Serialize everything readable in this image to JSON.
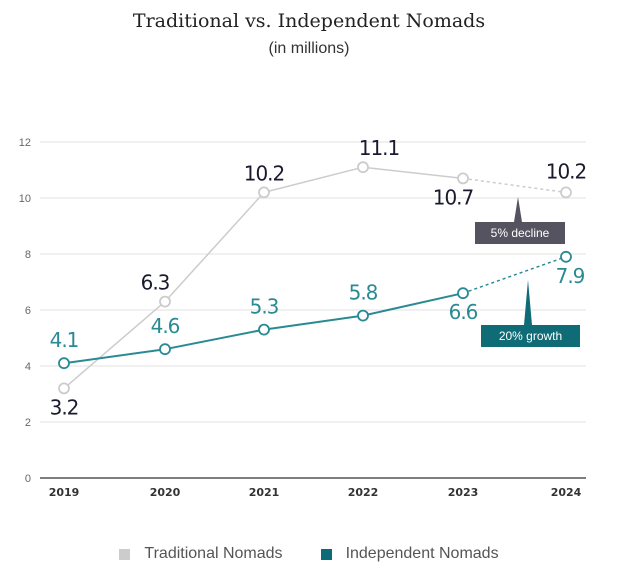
{
  "chart_data": {
    "type": "line",
    "title": "Traditional vs. Independent Nomads",
    "subtitle": "(in millions)",
    "xlabel": "",
    "ylabel": "",
    "categories": [
      "2019",
      "2020",
      "2021",
      "2022",
      "2023",
      "2024"
    ],
    "ylim": [
      0,
      12
    ],
    "yticks": [
      0,
      2,
      4,
      6,
      8,
      10,
      12
    ],
    "grid": true,
    "legend_position": "bottom",
    "series": [
      {
        "name": "Traditional Nomads",
        "color": "#cccccc",
        "label_color": "#1a1a2e",
        "values": [
          3.2,
          6.3,
          10.2,
          11.1,
          10.7,
          10.2
        ],
        "last_segment_dashed": true
      },
      {
        "name": "Independent Nomads",
        "color": "#2a8a93",
        "label_color": "#2a8a93",
        "legend_color": "#0d6b78",
        "values": [
          4.1,
          4.6,
          5.3,
          5.8,
          6.6,
          7.9
        ],
        "last_segment_dashed": true
      }
    ],
    "annotations": [
      {
        "text": "5% decline",
        "color": "#55535f",
        "series": 0
      },
      {
        "text": "20% growth",
        "color": "#0f6b76",
        "series": 1
      }
    ]
  }
}
